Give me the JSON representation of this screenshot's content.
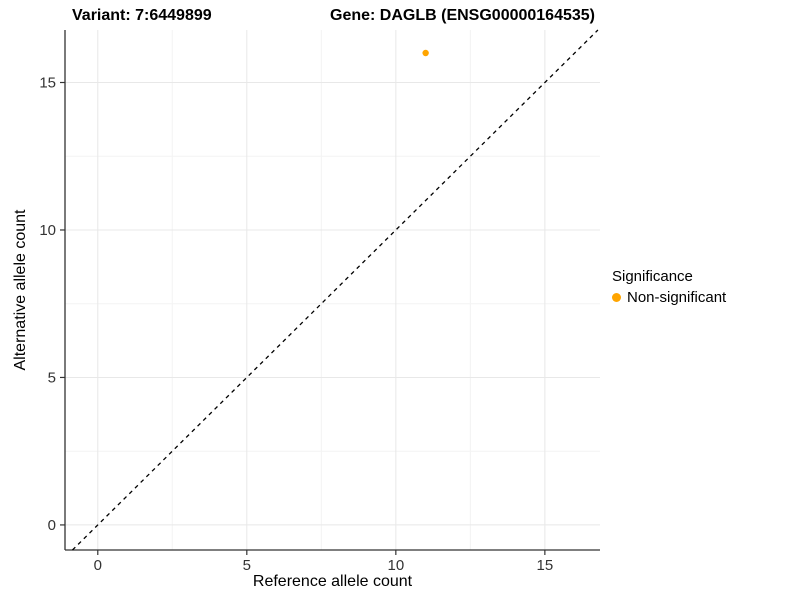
{
  "header": {
    "variant_title": "Variant: 7:6449899",
    "gene_title": "Gene: DAGLB (ENSG00000164535)"
  },
  "axes": {
    "x_label": "Reference allele count",
    "y_label": "Alternative allele count"
  },
  "legend": {
    "title": "Significance",
    "items": [
      {
        "label": "Non-significant",
        "color": "#FFA500",
        "marker": "dot"
      }
    ]
  },
  "chart_data": {
    "type": "scatter",
    "title_left": "Variant: 7:6449899",
    "title_right": "Gene: DAGLB (ENSG00000164535)",
    "xlabel": "Reference allele count",
    "ylabel": "Alternative allele count",
    "points": [
      {
        "x": 11,
        "y": 16,
        "series": "Non-significant",
        "color": "#FFA500"
      }
    ],
    "reference_line": {
      "type": "identity",
      "equation": "y = x",
      "style": "dashed",
      "color": "#000000"
    },
    "x_domain": [
      -1.1,
      16.85
    ],
    "y_domain": [
      -0.85,
      16.78
    ],
    "x_ticks": [
      0,
      5,
      10,
      15
    ],
    "y_ticks": [
      0,
      5,
      10,
      15
    ],
    "x_minor_ticks": [
      2.5,
      7.5,
      12.5
    ],
    "y_minor_ticks": [
      2.5,
      7.5,
      12.5
    ],
    "grid": "major+minor",
    "legend_position": "right",
    "legend_title": "Significance",
    "legend_entries": [
      "Non-significant"
    ],
    "colors": {
      "point": "#FFA500",
      "major_grid": "#e8e8e8",
      "minor_grid": "#f3f3f3",
      "axis_line": "#333333",
      "tick_mark": "#333333",
      "tick_label": "#333333"
    }
  }
}
